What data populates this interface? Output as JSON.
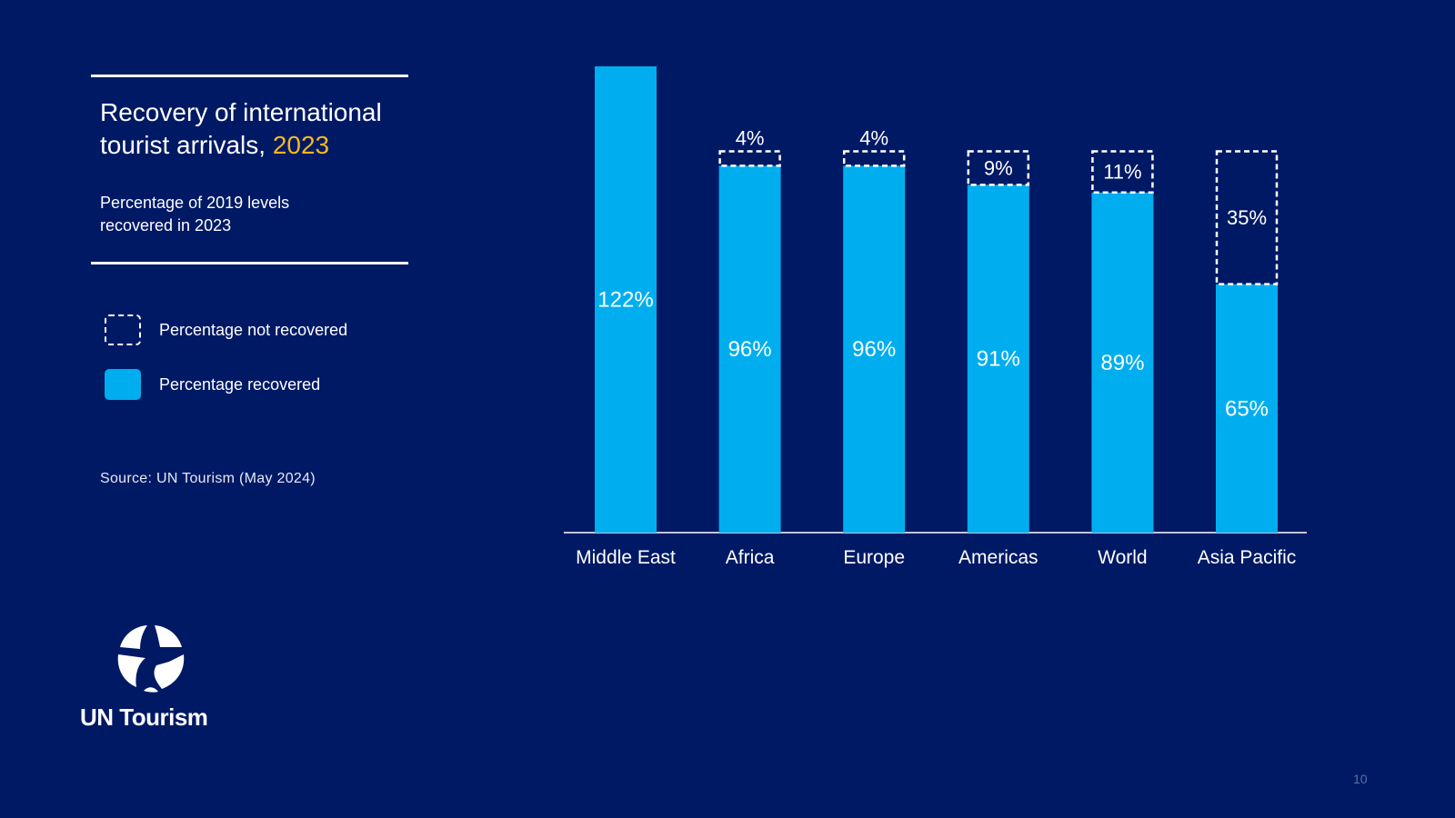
{
  "colors": {
    "background": "#001965",
    "recovered": "#00AEEF",
    "highlight": "#F6B81E",
    "text": "#FFFFFF"
  },
  "title": {
    "main": "Recovery of international tourist arrivals,",
    "year": "2023"
  },
  "subtitle": {
    "line1": "Percentage of 2019 levels",
    "line2": "recovered in 2023"
  },
  "legend": {
    "not_recovered": "Percentage not recovered",
    "recovered": "Percentage recovered"
  },
  "source": "Source: UN Tourism (May 2024)",
  "logo": {
    "text": "UN Tourism",
    "icon": "un-tourism-globe-icon"
  },
  "page_number": "10",
  "chart_data": {
    "type": "bar",
    "stacked": true,
    "title": "Recovery of international tourist arrivals, 2023",
    "ylabel": "Percentage of 2019 levels recovered in 2023",
    "categories": [
      "Middle East",
      "Africa",
      "Europe",
      "Americas",
      "World",
      "Asia Pacific"
    ],
    "series": [
      {
        "name": "Percentage recovered",
        "values": [
          122,
          96,
          96,
          91,
          89,
          65
        ],
        "labels": [
          "122%",
          "96%",
          "96%",
          "91%",
          "89%",
          "65%"
        ],
        "style": "solid"
      },
      {
        "name": "Percentage not recovered",
        "values": [
          0,
          4,
          4,
          9,
          11,
          35
        ],
        "labels": [
          "",
          "4%",
          "4%",
          "9%",
          "11%",
          "35%"
        ],
        "style": "dashed"
      }
    ],
    "ylim": [
      0,
      122
    ],
    "grid": false,
    "legend_position": "left"
  }
}
